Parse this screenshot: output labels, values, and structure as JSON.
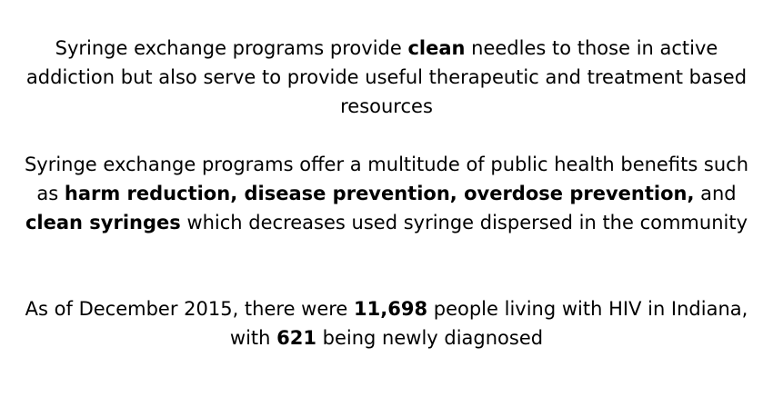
{
  "paragraph1": {
    "t1": "Syringe exchange programs provide ",
    "b1": "clean",
    "t2": " needles to those in active addiction but also serve to provide useful therapeutic and treatment based resources"
  },
  "paragraph2": {
    "t1": "Syringe exchange programs offer a multitude of public health benefits such as ",
    "b1": "harm reduction, disease prevention, overdose prevention,",
    "t2": " and ",
    "b2": "clean syringes",
    "t3": " which decreases used syringe dispersed in the community"
  },
  "paragraph3": {
    "t1": "As of December 2015, there were ",
    "b1": "11,698",
    "t2": " people living with HIV in Indiana, with ",
    "b2": "621",
    "t3": " being newly diagnosed"
  }
}
